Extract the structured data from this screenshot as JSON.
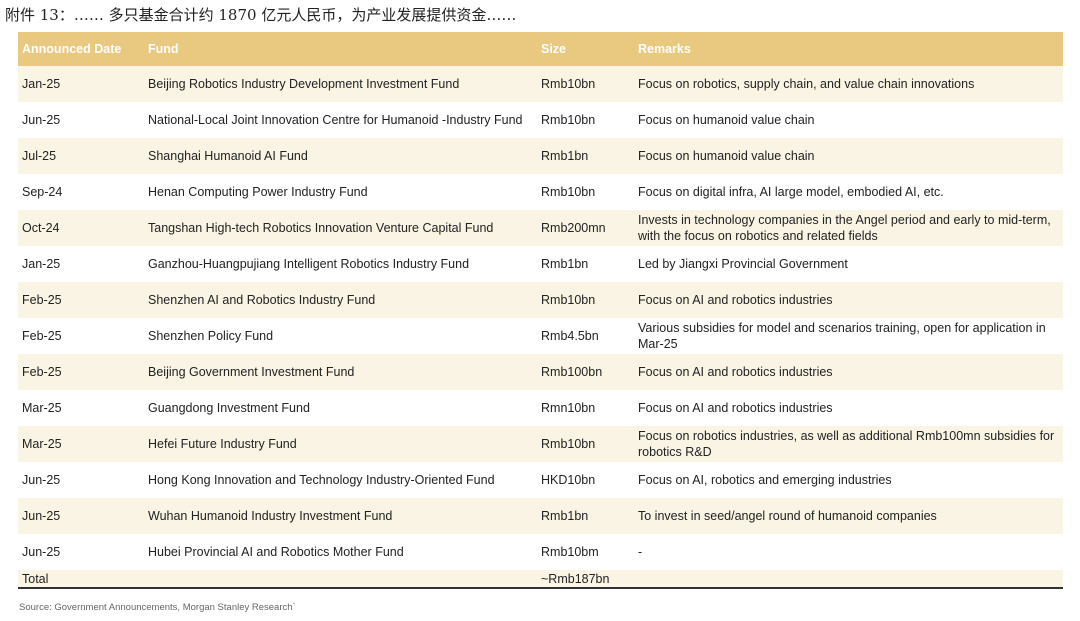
{
  "title": "附件 13：…… 多只基金合计约 1870 亿元人民币，为产业发展提供资金……",
  "headers": [
    "Announced Date",
    "Fund",
    "Size",
    "Remarks"
  ],
  "rows": [
    [
      "Jan-25",
      "Beijing Robotics Industry Development Investment Fund",
      "Rmb10bn",
      "Focus on robotics, supply chain, and value chain innovations"
    ],
    [
      "Jun-25",
      "National-Local Joint Innovation Centre for Humanoid -Industry Fund",
      "Rmb10bn",
      "Focus on humanoid value chain"
    ],
    [
      "Jul-25",
      "Shanghai Humanoid AI Fund",
      "Rmb1bn",
      "Focus on humanoid value chain"
    ],
    [
      "Sep-24",
      "Henan Computing Power Industry Fund",
      "Rmb10bn",
      "Focus on digital infra, AI large model, embodied AI, etc."
    ],
    [
      "Oct-24",
      "Tangshan High-tech Robotics Innovation Venture Capital Fund",
      "Rmb200mn",
      "Invests in technology companies in the Angel period and early to mid-term, with the focus on robotics and related fields"
    ],
    [
      "Jan-25",
      "Ganzhou-Huangpujiang Intelligent Robotics Industry Fund",
      "Rmb1bn",
      "Led by Jiangxi Provincial Government"
    ],
    [
      "Feb-25",
      "Shenzhen AI and Robotics Industry Fund",
      "Rmb10bn",
      "Focus on AI and robotics industries"
    ],
    [
      "Feb-25",
      "Shenzhen Policy Fund",
      "Rmb4.5bn",
      "Various subsidies for model and scenarios training, open for application in Mar-25"
    ],
    [
      "Feb-25",
      "Beijing Government Investment Fund",
      "Rmb100bn",
      "Focus on AI and robotics industries"
    ],
    [
      "Mar-25",
      "Guangdong Investment Fund",
      "Rmn10bn",
      "Focus on AI and robotics industries"
    ],
    [
      "Mar-25",
      "Hefei Future Industry Fund",
      "Rmb10bn",
      "Focus on robotics industries, as well as additional Rmb100mn subsidies for robotics R&D"
    ],
    [
      "Jun-25",
      "Hong Kong Innovation and Technology Industry-Oriented Fund",
      "HKD10bn",
      "Focus on AI, robotics and emerging industries"
    ],
    [
      "Jun-25",
      "Wuhan Humanoid Industry Investment Fund",
      "Rmb1bn",
      "To invest in seed/angel round of humanoid companies"
    ],
    [
      "Jun-25",
      "Hubei Provincial AI and Robotics Mother Fund",
      "Rmb10bm",
      "-"
    ]
  ],
  "total": {
    "label": "Total",
    "size": "~Rmb187bn"
  },
  "source": "Source: Government Announcements, Morgan Stanley Research`"
}
